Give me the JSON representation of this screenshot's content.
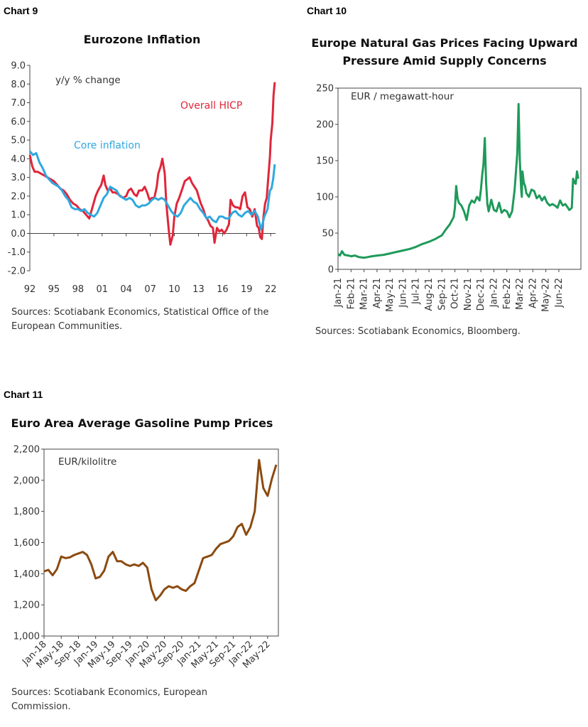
{
  "chart_data": [
    {
      "type": "line",
      "chart_label": "Chart 9",
      "title": "Eurozone Inflation",
      "unit_label": "y/y % change",
      "source": "Sources: Scotiabank Economics, Statistical Office of the European Communities.",
      "yticks": [
        "9.0",
        "8.0",
        "7.0",
        "6.0",
        "5.0",
        "4.0",
        "3.0",
        "2.0",
        "1.0",
        "0.0",
        "-1.0",
        "-2.0"
      ],
      "xticks": [
        "92",
        "95",
        "98",
        "01",
        "04",
        "07",
        "10",
        "13",
        "16",
        "19",
        "22"
      ],
      "xlim": [
        1992,
        2022.6
      ],
      "ylim": [
        -2,
        9
      ],
      "series": [
        {
          "name": "Overall HICP",
          "color": "#e0263a",
          "x": [
            1992.0,
            1992.3,
            1992.6,
            1993.0,
            1993.4,
            1993.8,
            1994.2,
            1994.6,
            1995.0,
            1995.4,
            1995.8,
            1996.2,
            1996.6,
            1997.0,
            1997.4,
            1997.8,
            1998.2,
            1998.6,
            1999.0,
            1999.4,
            1999.8,
            2000.2,
            2000.5,
            2000.9,
            2001.2,
            2001.4,
            2001.7,
            2002.0,
            2002.3,
            2002.6,
            2003.0,
            2003.3,
            2003.6,
            2004.0,
            2004.3,
            2004.6,
            2005.0,
            2005.3,
            2005.6,
            2006.0,
            2006.3,
            2006.6,
            2006.9,
            2007.2,
            2007.5,
            2007.8,
            2008.0,
            2008.3,
            2008.5,
            2008.8,
            2009.0,
            2009.3,
            2009.5,
            2009.8,
            2010.0,
            2010.3,
            2010.6,
            2011.0,
            2011.3,
            2011.6,
            2011.9,
            2012.2,
            2012.5,
            2012.8,
            2013.0,
            2013.3,
            2013.6,
            2013.9,
            2014.2,
            2014.5,
            2014.8,
            2015.0,
            2015.3,
            2015.6,
            2015.9,
            2016.2,
            2016.5,
            2016.8,
            2017.0,
            2017.3,
            2017.6,
            2017.9,
            2018.2,
            2018.5,
            2018.8,
            2019.1,
            2019.4,
            2019.7,
            2020.0,
            2020.3,
            2020.5,
            2020.7,
            2020.9,
            2021.1,
            2021.3,
            2021.5,
            2021.7,
            2021.9,
            2022.0,
            2022.2,
            2022.35,
            2022.5
          ],
          "values": [
            4.2,
            3.6,
            3.3,
            3.3,
            3.2,
            3.1,
            3.0,
            2.9,
            2.8,
            2.6,
            2.4,
            2.3,
            2.1,
            1.8,
            1.6,
            1.5,
            1.3,
            1.2,
            1.0,
            0.8,
            1.4,
            2.0,
            2.3,
            2.6,
            3.1,
            2.6,
            2.3,
            2.4,
            2.2,
            2.2,
            2.1,
            2.0,
            1.9,
            2.0,
            2.3,
            2.4,
            2.1,
            2.0,
            2.3,
            2.3,
            2.5,
            2.2,
            1.8,
            1.9,
            1.9,
            2.5,
            3.2,
            3.6,
            4.0,
            3.2,
            1.6,
            0.2,
            -0.6,
            -0.1,
            0.9,
            1.6,
            1.9,
            2.4,
            2.8,
            2.9,
            3.0,
            2.7,
            2.5,
            2.3,
            2.0,
            1.6,
            1.3,
            0.9,
            0.7,
            0.4,
            0.3,
            -0.5,
            0.3,
            0.1,
            0.2,
            0.0,
            0.2,
            0.5,
            1.8,
            1.5,
            1.4,
            1.4,
            1.3,
            2.0,
            2.2,
            1.4,
            1.3,
            0.9,
            1.3,
            0.4,
            0.3,
            -0.2,
            -0.3,
            0.9,
            1.6,
            1.9,
            3.0,
            4.1,
            5.0,
            5.9,
            7.4,
            8.1
          ]
        },
        {
          "name": "Core inflation",
          "color": "#2fa8e0",
          "x": [
            1992.0,
            1992.4,
            1992.8,
            1993.2,
            1993.6,
            1994.0,
            1994.4,
            1994.8,
            1995.2,
            1995.6,
            1996.0,
            1996.4,
            1996.8,
            1997.2,
            1997.6,
            1998.0,
            1998.4,
            1998.8,
            1999.2,
            1999.6,
            2000.0,
            2000.4,
            2000.8,
            2001.2,
            2001.6,
            2002.0,
            2002.4,
            2002.8,
            2003.2,
            2003.6,
            2004.0,
            2004.4,
            2004.8,
            2005.2,
            2005.6,
            2006.0,
            2006.4,
            2006.8,
            2007.2,
            2007.6,
            2008.0,
            2008.4,
            2008.8,
            2009.2,
            2009.6,
            2010.0,
            2010.4,
            2010.8,
            2011.2,
            2011.6,
            2012.0,
            2012.4,
            2012.8,
            2013.2,
            2013.6,
            2014.0,
            2014.4,
            2014.8,
            2015.2,
            2015.6,
            2016.0,
            2016.4,
            2016.8,
            2017.2,
            2017.6,
            2018.0,
            2018.4,
            2018.8,
            2019.2,
            2019.6,
            2020.0,
            2020.4,
            2020.8,
            2021.2,
            2021.6,
            2021.9,
            2022.1,
            2022.3,
            2022.5
          ],
          "values": [
            4.4,
            4.2,
            4.3,
            3.8,
            3.5,
            3.1,
            2.9,
            2.7,
            2.6,
            2.5,
            2.3,
            2.0,
            1.8,
            1.4,
            1.3,
            1.3,
            1.2,
            1.3,
            1.1,
            1.0,
            0.9,
            1.1,
            1.5,
            1.9,
            2.1,
            2.5,
            2.4,
            2.3,
            2.0,
            1.9,
            1.8,
            1.9,
            1.8,
            1.5,
            1.4,
            1.5,
            1.5,
            1.6,
            1.8,
            1.9,
            1.8,
            1.9,
            1.8,
            1.5,
            1.2,
            1.0,
            0.9,
            1.1,
            1.5,
            1.7,
            1.9,
            1.7,
            1.6,
            1.3,
            1.1,
            0.8,
            0.9,
            0.7,
            0.6,
            0.9,
            0.9,
            0.8,
            0.8,
            1.1,
            1.2,
            1.0,
            0.9,
            1.1,
            1.2,
            1.0,
            1.2,
            0.9,
            0.2,
            0.9,
            1.3,
            2.3,
            2.4,
            2.9,
            3.7
          ]
        }
      ]
    },
    {
      "type": "line",
      "chart_label": "Chart 10",
      "title": "Europe Natural Gas Prices Facing Upward Pressure Amid Supply Concerns",
      "unit_label": "EUR / megawatt-hour",
      "source": "Sources: Scotiabank Economics, Bloomberg.",
      "yticks": [
        "250",
        "200",
        "150",
        "100",
        "50",
        "0"
      ],
      "xticks": [
        "Jan-21",
        "Feb-21",
        "Mar-21",
        "Apr-21",
        "May-21",
        "Jun-21",
        "Jul-21",
        "Aug-21",
        "Sep-21",
        "Oct-21",
        "Nov-21",
        "Dec-21",
        "Jan-22",
        "Feb-22",
        "Mar-22",
        "Apr-22",
        "May-22",
        "Jun-22"
      ],
      "xlim": [
        0,
        18.7
      ],
      "ylim": [
        0,
        250
      ],
      "series": [
        {
          "name": "",
          "color": "#1e9a5a",
          "x": [
            0.0,
            0.15,
            0.3,
            0.5,
            0.8,
            1.0,
            1.3,
            1.6,
            2.0,
            2.3,
            2.6,
            3.0,
            3.5,
            4.0,
            4.5,
            5.0,
            5.5,
            6.0,
            6.5,
            7.0,
            7.5,
            8.0,
            8.3,
            8.6,
            8.9,
            9.0,
            9.1,
            9.2,
            9.3,
            9.5,
            9.7,
            9.9,
            10.1,
            10.3,
            10.5,
            10.7,
            10.9,
            11.0,
            11.1,
            11.2,
            11.3,
            11.4,
            11.5,
            11.6,
            11.8,
            12.0,
            12.2,
            12.4,
            12.6,
            12.8,
            13.0,
            13.2,
            13.4,
            13.6,
            13.8,
            13.9,
            14.0,
            14.1,
            14.15,
            14.2,
            14.3,
            14.4,
            14.5,
            14.7,
            14.9,
            15.1,
            15.3,
            15.5,
            15.7,
            15.9,
            16.1,
            16.3,
            16.5,
            16.7,
            16.9,
            17.1,
            17.3,
            17.5,
            17.7,
            17.8,
            17.9,
            18.0,
            18.1,
            18.2,
            18.3,
            18.4,
            18.5
          ],
          "values": [
            21,
            19,
            25,
            20,
            19,
            18,
            19,
            17,
            16,
            17,
            18,
            19,
            20,
            22,
            24,
            26,
            28,
            31,
            35,
            38,
            42,
            47,
            55,
            62,
            72,
            85,
            115,
            98,
            92,
            88,
            80,
            68,
            88,
            95,
            92,
            100,
            95,
            110,
            130,
            145,
            181,
            120,
            90,
            80,
            96,
            82,
            80,
            92,
            78,
            82,
            80,
            72,
            80,
            110,
            160,
            228,
            150,
            110,
            100,
            135,
            120,
            115,
            105,
            100,
            110,
            108,
            98,
            102,
            95,
            100,
            92,
            88,
            90,
            88,
            85,
            95,
            88,
            90,
            85,
            82,
            83,
            85,
            125,
            120,
            118,
            135,
            125
          ]
        }
      ]
    },
    {
      "type": "line",
      "chart_label": "Chart 11",
      "title": "Euro Area Average Gasoline Pump Prices",
      "unit_label": "EUR/kilolitre",
      "source": "Sources: Scotiabank Economics, European Commission.",
      "yticks": [
        "2,200",
        "2,000",
        "1,800",
        "1,600",
        "1,400",
        "1,200",
        "1,000"
      ],
      "xticks": [
        "Jan-18",
        "May-18",
        "Sep-18",
        "Jan-19",
        "May-19",
        "Sep-19",
        "Jan-20",
        "May-20",
        "Sep-20",
        "Jan-21",
        "May-21",
        "Sep-21",
        "Jan-22",
        "May-22"
      ],
      "xlim": [
        0,
        54.5
      ],
      "ylim": [
        1000,
        2200
      ],
      "series": [
        {
          "name": "",
          "color": "#8b4a0f",
          "x": [
            0,
            1,
            2,
            3,
            4,
            5,
            6,
            7,
            8,
            9,
            10,
            11,
            12,
            13,
            14,
            15,
            16,
            17,
            18,
            19,
            20,
            21,
            22,
            23,
            24,
            25,
            26,
            27,
            28,
            29,
            30,
            31,
            32,
            33,
            34,
            35,
            36,
            37,
            38,
            39,
            40,
            41,
            42,
            43,
            44,
            45,
            46,
            47,
            48,
            49,
            50,
            51,
            52,
            53,
            54
          ],
          "values": [
            1415,
            1425,
            1390,
            1430,
            1510,
            1500,
            1505,
            1520,
            1530,
            1540,
            1520,
            1460,
            1370,
            1380,
            1420,
            1510,
            1540,
            1480,
            1480,
            1460,
            1450,
            1460,
            1450,
            1470,
            1440,
            1300,
            1230,
            1260,
            1300,
            1320,
            1310,
            1320,
            1300,
            1290,
            1320,
            1340,
            1420,
            1500,
            1510,
            1520,
            1560,
            1590,
            1600,
            1610,
            1640,
            1700,
            1720,
            1650,
            1700,
            1800,
            2130,
            1950,
            1900,
            2010,
            2100
          ]
        }
      ]
    }
  ]
}
